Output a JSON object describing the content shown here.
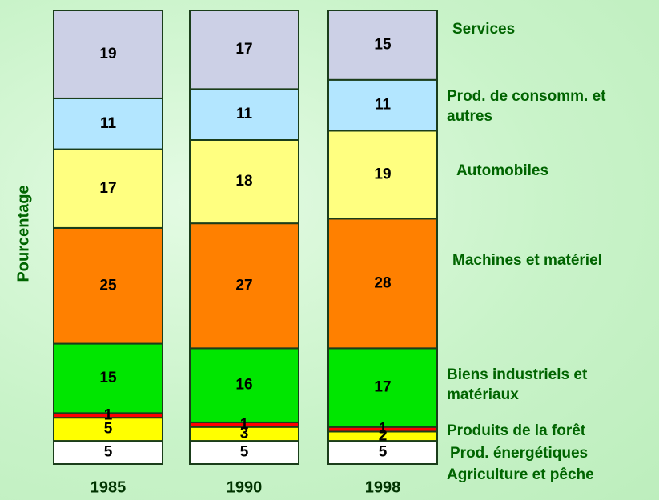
{
  "chart_data": {
    "type": "stacked_bar",
    "y_label": "Pourcentage",
    "categories": [
      "1985",
      "1990",
      "1998"
    ],
    "series": [
      {
        "name": "Agriculture et pêche",
        "color": "#ffffff",
        "values": [
          5,
          5,
          5
        ]
      },
      {
        "name": "Prod. énergétiques",
        "color": "#ffff00",
        "values": [
          5,
          3,
          2
        ]
      },
      {
        "name": "Produits de la forêt",
        "color": "#ff0000",
        "values": [
          1,
          1,
          1
        ]
      },
      {
        "name": "Biens industriels et matériaux",
        "color": "#00e600",
        "values": [
          15,
          16,
          17
        ]
      },
      {
        "name": "Machines et matériel",
        "color": "#ff8000",
        "values": [
          25,
          27,
          28
        ]
      },
      {
        "name": "Automobiles",
        "color": "#ffff80",
        "values": [
          17,
          18,
          19
        ]
      },
      {
        "name": "Prod. de consomm. et autres",
        "color": "#b3e6ff",
        "values": [
          11,
          11,
          11
        ]
      },
      {
        "name": "Services",
        "color": "#ccd0e6",
        "values": [
          19,
          17,
          15
        ]
      }
    ]
  }
}
